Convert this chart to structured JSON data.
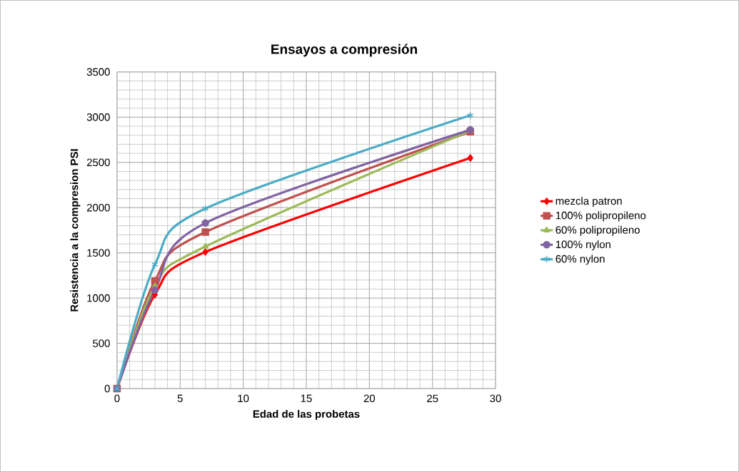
{
  "chart_data": {
    "type": "line",
    "title": "Ensayos a compresión",
    "xlabel": "Edad de las probetas",
    "ylabel": "Resistencia a la compresion PSI",
    "x": [
      0,
      3,
      7,
      28
    ],
    "series": [
      {
        "name": "mezcla patron",
        "color": "#ff0000",
        "marker": "diamond",
        "values": [
          0,
          1040,
          1510,
          2550
        ]
      },
      {
        "name": "100% polipropileno",
        "color": "#c0504d",
        "marker": "square",
        "values": [
          0,
          1190,
          1730,
          2840
        ]
      },
      {
        "name": "60% polipropileno",
        "color": "#9bbb59",
        "marker": "triangle",
        "values": [
          0,
          1130,
          1570,
          2850
        ]
      },
      {
        "name": "100% nylon",
        "color": "#8064a2",
        "marker": "circle",
        "values": [
          0,
          1090,
          1830,
          2860
        ]
      },
      {
        "name": "60% nylon",
        "color": "#4bacc6",
        "marker": "cross",
        "values": [
          0,
          1370,
          1990,
          3020
        ]
      }
    ],
    "xlim": [
      0,
      30
    ],
    "xticks": [
      0,
      5,
      10,
      15,
      20,
      25,
      30
    ],
    "ylim": [
      0,
      3500
    ],
    "yticks": [
      0,
      500,
      1000,
      1500,
      2000,
      2500,
      3000,
      3500
    ],
    "grid": true,
    "legend": "right",
    "line_style": "solid"
  }
}
